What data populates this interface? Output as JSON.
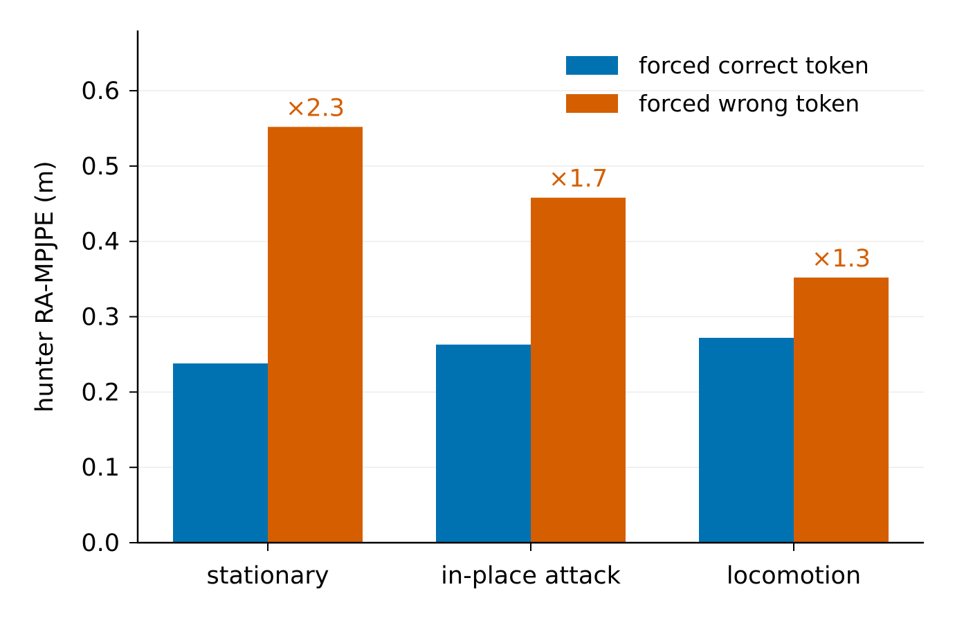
{
  "chart_data": {
    "type": "bar",
    "title": "",
    "xlabel": "",
    "ylabel": "hunter RA-MPJPE (m)",
    "categories": [
      "stationary",
      "in-place attack",
      "locomotion"
    ],
    "series": [
      {
        "name": "forced correct token",
        "color": "#0072B2",
        "values": [
          0.238,
          0.263,
          0.272
        ]
      },
      {
        "name": "forced wrong token",
        "color": "#D55E00",
        "values": [
          0.552,
          0.458,
          0.352
        ]
      }
    ],
    "annotations": [
      "×2.3",
      "×1.7",
      "×1.3"
    ],
    "annotation_color": "#D55E00",
    "ylim": [
      0,
      0.68
    ],
    "yticks": [
      0.0,
      0.1,
      0.2,
      0.3,
      0.4,
      0.5,
      0.6
    ],
    "ytick_labels": [
      "0.0",
      "0.1",
      "0.2",
      "0.3",
      "0.4",
      "0.5",
      "0.6"
    ],
    "grid": "horizontal",
    "legend": "top-right"
  }
}
